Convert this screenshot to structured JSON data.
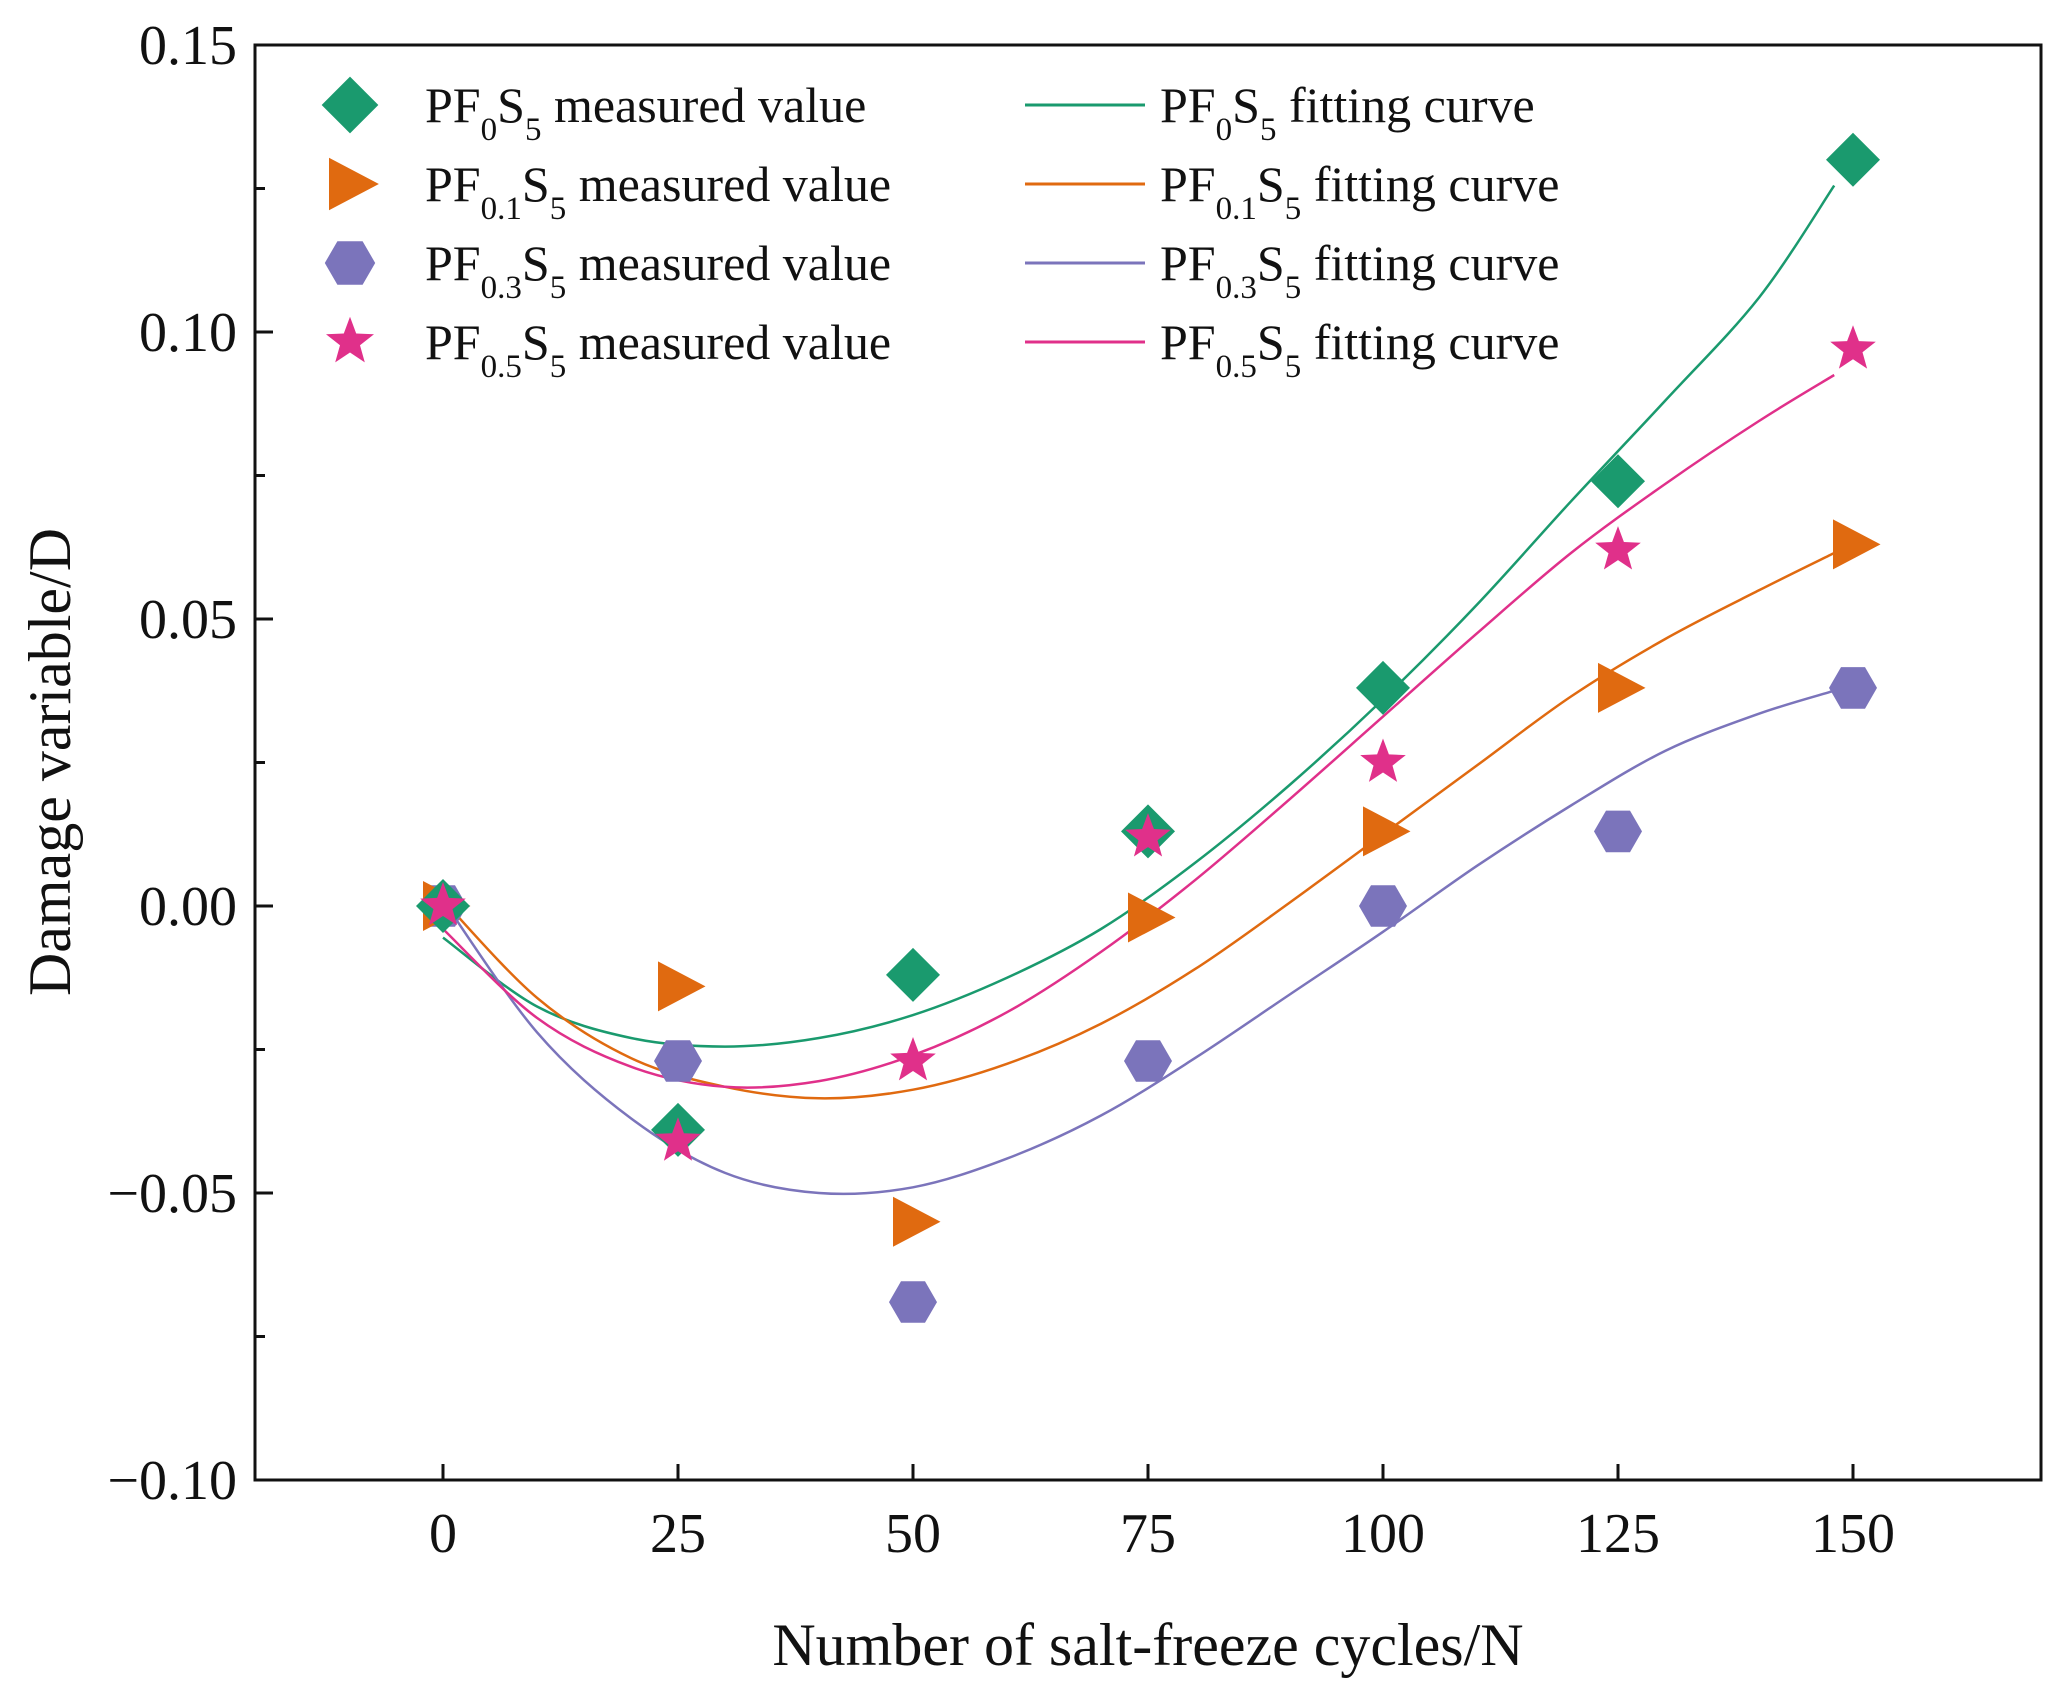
{
  "chart_data": {
    "type": "scatter",
    "xlabel": "Number of salt-freeze cycles/N",
    "ylabel": "Damage variable/D",
    "xlim": [
      -20,
      170
    ],
    "ylim": [
      -0.1,
      0.15
    ],
    "x_ticks": [
      0,
      25,
      50,
      75,
      100,
      125,
      150
    ],
    "x_tick_labels": [
      "0",
      "25",
      "50",
      "75",
      "100",
      "125",
      "150"
    ],
    "y_ticks": [
      -0.1,
      -0.05,
      0.0,
      0.05,
      0.1,
      0.15
    ],
    "y_tick_labels": [
      "−0.10",
      "−0.05",
      "0.00",
      "0.05",
      "0.10",
      "0.15"
    ],
    "grid": false,
    "legend_position": "top-left",
    "x": [
      0,
      25,
      50,
      75,
      100,
      125,
      150
    ],
    "series": [
      {
        "name": "PF0S5",
        "base": "PF",
        "sub1": "0",
        "mid": "S",
        "sub2": "5",
        "gap": "  ",
        "measured_label": "measured value",
        "fit_label": "fitting curve",
        "color": "#1a9a6e",
        "marker": "diamond",
        "values": [
          0.0,
          -0.039,
          -0.012,
          0.013,
          0.038,
          0.074,
          0.13
        ],
        "fit_x": [
          0,
          10,
          20,
          30,
          40,
          50,
          60,
          70,
          80,
          90,
          100,
          110,
          120,
          130,
          140,
          148
        ],
        "fit_values": [
          -0.0055,
          -0.0175,
          -0.023,
          -0.0245,
          -0.023,
          -0.019,
          -0.0125,
          -0.004,
          0.0075,
          0.021,
          0.036,
          0.0525,
          0.0705,
          0.088,
          0.106,
          0.1255
        ]
      },
      {
        "name": "PF0.1S5",
        "base": "PF",
        "sub1": "0.1",
        "mid": "S",
        "sub2": "5",
        "gap": "",
        "measured_label": "measured value",
        "fit_label": "fitting curve",
        "color": "#e06a10",
        "marker": "triangle-right",
        "values": [
          0.0,
          -0.014,
          -0.055,
          -0.002,
          0.013,
          0.038,
          0.063
        ],
        "fit_x": [
          0,
          10,
          20,
          30,
          40,
          50,
          60,
          70,
          80,
          90,
          100,
          110,
          120,
          130,
          140,
          148
        ],
        "fit_values": [
          0.001,
          -0.016,
          -0.0265,
          -0.0315,
          -0.0335,
          -0.032,
          -0.0275,
          -0.0205,
          -0.011,
          0.0005,
          0.0125,
          0.0245,
          0.0365,
          0.0465,
          0.055,
          0.0615
        ]
      },
      {
        "name": "PF0.3S5",
        "base": "PF",
        "sub1": "0.3",
        "mid": "S",
        "sub2": "5",
        "gap": "",
        "measured_label": "measured value",
        "fit_label": "fitting curve",
        "color": "#7b74bb",
        "marker": "hexagon",
        "values": [
          0.0,
          -0.027,
          -0.069,
          -0.027,
          0.0,
          0.013,
          0.038
        ],
        "fit_x": [
          0,
          10,
          20,
          30,
          40,
          50,
          60,
          70,
          80,
          90,
          100,
          110,
          120,
          130,
          140,
          148
        ],
        "fit_values": [
          0.001,
          -0.022,
          -0.037,
          -0.0465,
          -0.05,
          -0.049,
          -0.044,
          -0.0365,
          -0.0265,
          -0.0155,
          -0.0045,
          0.007,
          0.0175,
          0.027,
          0.0335,
          0.0375
        ]
      },
      {
        "name": "PF0.5S5",
        "base": "PF",
        "sub1": "0.5",
        "mid": "S",
        "sub2": "5",
        "gap": "",
        "measured_label": "measured value",
        "fit_label": "fitting curve",
        "color": "#e0308a",
        "marker": "star",
        "values": [
          0.0,
          -0.041,
          -0.027,
          0.012,
          0.025,
          0.062,
          0.097
        ],
        "fit_x": [
          0,
          10,
          20,
          30,
          40,
          50,
          60,
          70,
          80,
          90,
          100,
          110,
          120,
          130,
          140,
          148
        ],
        "fit_values": [
          -0.004,
          -0.0195,
          -0.028,
          -0.0315,
          -0.0305,
          -0.026,
          -0.0185,
          -0.008,
          0.0045,
          0.0185,
          0.033,
          0.0475,
          0.0615,
          0.0735,
          0.0845,
          0.0925
        ]
      }
    ]
  }
}
